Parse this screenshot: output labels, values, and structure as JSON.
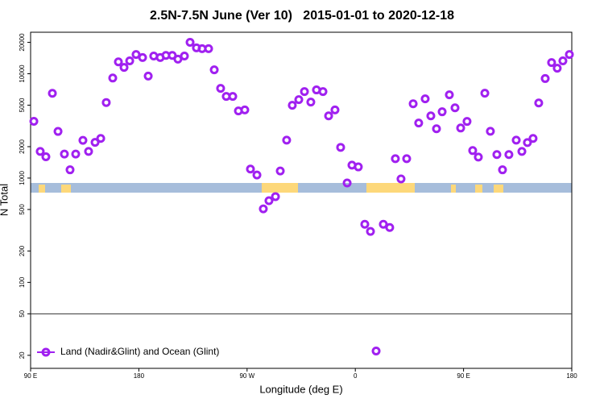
{
  "chart_data": {
    "type": "scatter",
    "title": "2.5N-7.5N June (Ver 10)   2015-01-01 to 2020-12-18",
    "x_label": "Longitude (deg E)",
    "y_label": "N Total",
    "log_y": true,
    "legend": "bottom-left",
    "hline": 50,
    "xlim": [
      90,
      540
    ],
    "ylim": [
      15,
      25000
    ],
    "xticks": [
      {
        "value": 90,
        "label": "90 E"
      },
      180,
      {
        "value": 270,
        "label": "90 W"
      },
      {
        "value": 360,
        "label": "0"
      },
      {
        "value": 450,
        "label": "90 E"
      },
      {
        "value": 540,
        "label": "180"
      }
    ],
    "yticks": [
      20,
      50,
      100,
      200,
      500,
      1000,
      2000,
      5000,
      10000,
      20000
    ],
    "series": [
      {
        "name": "Land (Nadir&Glint) and Ocean (Glint)",
        "color": "#a020f0",
        "x": [
          92.7,
          98.0,
          102.7,
          108.1,
          112.8,
          118.1,
          122.8,
          127.5,
          133.5,
          138.2,
          143.6,
          148.3,
          152.9,
          158.3,
          163.0,
          167.7,
          172.4,
          177.7,
          183.1,
          187.8,
          192.4,
          197.8,
          202.5,
          207.8,
          212.5,
          217.9,
          222.6,
          227.9,
          232.6,
          238.0,
          242.7,
          248.0,
          252.7,
          258.1,
          262.8,
          268.1,
          272.8,
          278.2,
          283.5,
          288.2,
          293.6,
          297.6,
          302.9,
          307.6,
          313.0,
          317.7,
          323.0,
          327.7,
          333.1,
          337.8,
          343.1,
          347.8,
          353.2,
          357.2,
          362.5,
          367.9,
          372.6,
          377.3,
          383.3,
          388.6,
          393.3,
          398.0,
          402.7,
          408.1,
          412.7,
          418.1,
          422.8,
          427.5,
          432.2,
          438.2,
          442.9,
          447.6,
          452.9,
          457.6,
          462.3,
          467.7,
          472.3,
          477.7,
          482.4,
          487.7,
          493.8,
          498.5,
          503.1,
          507.8,
          512.5,
          517.9,
          523.2,
          527.9,
          532.6,
          538.0
        ],
        "values": [
          3500,
          1800,
          1600,
          6500,
          2800,
          1700,
          1200,
          1700,
          2300,
          1800,
          2200,
          2400,
          5300,
          9100,
          13000,
          11500,
          13300,
          15300,
          14300,
          9500,
          14800,
          14300,
          15000,
          15000,
          13800,
          14800,
          20000,
          17700,
          17400,
          17400,
          10900,
          7250,
          6060,
          6060,
          4400,
          4500,
          1220,
          1070,
          507,
          607,
          664,
          1170,
          2310,
          4990,
          5650,
          6750,
          5350,
          7000,
          6750,
          3950,
          4500,
          1970,
          898,
          1330,
          1280,
          361,
          308,
          22,
          361,
          336,
          1535,
          982,
          1535,
          5160,
          3370,
          5750,
          3950,
          2970,
          4320,
          6280,
          4720,
          3020,
          3490,
          1835,
          1590,
          6510,
          2810,
          1680,
          1200,
          1680,
          2310,
          1800,
          2190,
          2400,
          5250,
          9000,
          12800,
          11300,
          13300,
          15300
        ]
      }
    ]
  }
}
